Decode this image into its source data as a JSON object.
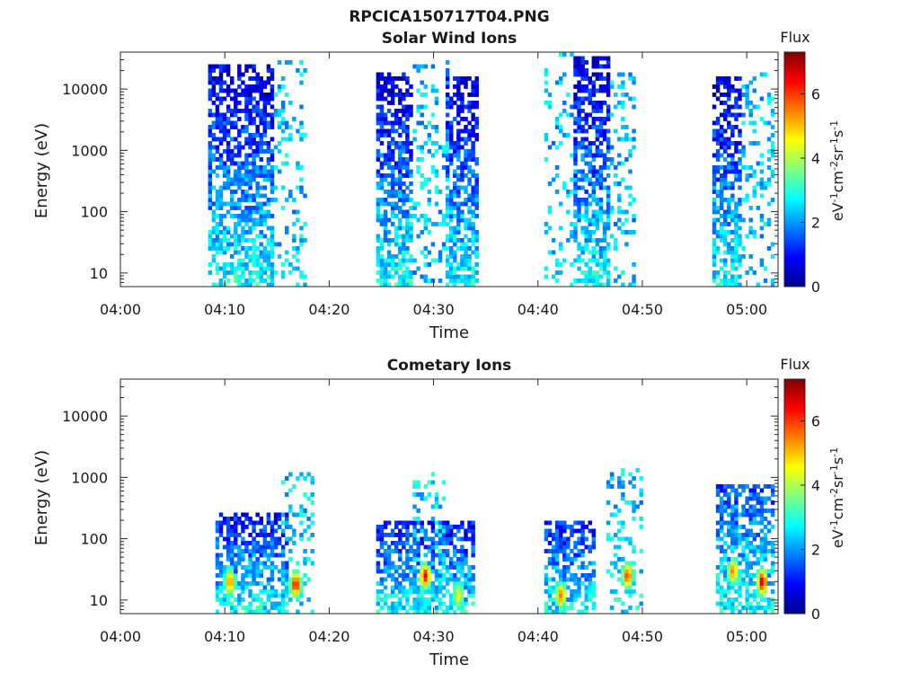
{
  "figure_title": "RPCICA150717T04.PNG",
  "chart_data": [
    {
      "type": "heatmap",
      "title": "Solar Wind Ions",
      "xlabel": "Time",
      "ylabel": "Energy (eV)",
      "x_ticks": [
        "04:00",
        "04:10",
        "04:20",
        "04:30",
        "04:40",
        "04:50",
        "05:00"
      ],
      "xlim_minutes": [
        0,
        63
      ],
      "y_ticks": [
        {
          "value": 10,
          "label": "10"
        },
        {
          "value": 100,
          "label": "100"
        },
        {
          "value": 1000,
          "label": "1000"
        },
        {
          "value": 10000,
          "label": "10000"
        }
      ],
      "ylim": [
        6,
        40000
      ],
      "y_scale": "log",
      "colorbar": {
        "title": "Flux",
        "label": "eV-1cm-2sr-1s-1",
        "ticks": [
          "0",
          "2",
          "4",
          "6"
        ],
        "range": [
          0,
          7.3
        ]
      },
      "regions": [
        {
          "start_min": 8.5,
          "end_min": 14.8,
          "flux_low_energy": 2.8,
          "flux_high_energy": 0.6,
          "e_top": 25000
        },
        {
          "start_min": 14.8,
          "end_min": 18.0,
          "flux_low_energy": 2.3,
          "flux_high_energy": 2.3,
          "e_top": 30000,
          "sparse": true
        },
        {
          "start_min": 24.5,
          "end_min": 28.0,
          "flux_low_energy": 2.8,
          "flux_high_energy": 0.6,
          "e_top": 20000
        },
        {
          "start_min": 28.0,
          "end_min": 31.5,
          "flux_low_energy": 2.3,
          "flux_high_energy": 2.3,
          "e_top": 30000,
          "sparse": true
        },
        {
          "start_min": 31.0,
          "end_min": 34.2,
          "flux_low_energy": 2.8,
          "flux_high_energy": 0.6,
          "e_top": 16000
        },
        {
          "start_min": 40.5,
          "end_min": 43.5,
          "flux_low_energy": 2.3,
          "flux_high_energy": 2.3,
          "e_top": 40000,
          "sparse": true
        },
        {
          "start_min": 43.5,
          "end_min": 46.8,
          "flux_low_energy": 2.8,
          "flux_high_energy": 0.6,
          "e_top": 35000
        },
        {
          "start_min": 46.8,
          "end_min": 49.5,
          "flux_low_energy": 2.3,
          "flux_high_energy": 2.3,
          "e_top": 20000,
          "sparse": true
        },
        {
          "start_min": 56.8,
          "end_min": 59.6,
          "flux_low_energy": 2.8,
          "flux_high_energy": 0.6,
          "e_top": 15000
        },
        {
          "start_min": 59.6,
          "end_min": 62.8,
          "flux_low_energy": 2.3,
          "flux_high_energy": 2.3,
          "e_top": 20000,
          "sparse": true
        }
      ],
      "hot_spots": []
    },
    {
      "type": "heatmap",
      "title": "Cometary Ions",
      "xlabel": "Time",
      "ylabel": "Energy (eV)",
      "x_ticks": [
        "04:00",
        "04:10",
        "04:20",
        "04:30",
        "04:40",
        "04:50",
        "05:00"
      ],
      "xlim_minutes": [
        0,
        63
      ],
      "y_ticks": [
        {
          "value": 10,
          "label": "10"
        },
        {
          "value": 100,
          "label": "100"
        },
        {
          "value": 1000,
          "label": "1000"
        },
        {
          "value": 10000,
          "label": "10000"
        }
      ],
      "ylim": [
        6,
        40000
      ],
      "y_scale": "log",
      "colorbar": {
        "title": "Flux",
        "label": "eV-1cm-2sr-1s-1",
        "ticks": [
          "0",
          "2",
          "4",
          "6"
        ],
        "range": [
          0,
          7.3
        ]
      },
      "regions": [
        {
          "start_min": 9.0,
          "end_min": 16.0,
          "flux_low_energy": 2.8,
          "flux_high_energy": 1.0,
          "e_top": 250
        },
        {
          "start_min": 15.5,
          "end_min": 18.5,
          "flux_low_energy": 2.6,
          "flux_high_energy": 2.4,
          "e_top": 1200,
          "sparse": true
        },
        {
          "start_min": 24.5,
          "end_min": 34.0,
          "flux_low_energy": 2.8,
          "flux_high_energy": 1.0,
          "e_top": 200
        },
        {
          "start_min": 28.0,
          "end_min": 31.0,
          "flux_low_energy": 2.5,
          "flux_high_energy": 2.5,
          "e_top": 1200,
          "sparse": true
        },
        {
          "start_min": 40.5,
          "end_min": 45.5,
          "flux_low_energy": 2.8,
          "flux_high_energy": 1.0,
          "e_top": 200
        },
        {
          "start_min": 46.5,
          "end_min": 50.0,
          "flux_low_energy": 2.6,
          "flux_high_energy": 2.3,
          "e_top": 1500,
          "sparse": true
        },
        {
          "start_min": 57.0,
          "end_min": 62.8,
          "flux_low_energy": 2.8,
          "flux_high_energy": 1.5,
          "e_top": 800
        }
      ],
      "hot_spots": [
        {
          "min": 10.5,
          "e": 20,
          "flux": 5.5
        },
        {
          "min": 16.8,
          "e": 18,
          "flux": 6.5
        },
        {
          "min": 29.2,
          "e": 25,
          "flux": 6.5
        },
        {
          "min": 32.4,
          "e": 12,
          "flux": 4.5
        },
        {
          "min": 42.2,
          "e": 12,
          "flux": 5.5
        },
        {
          "min": 48.6,
          "e": 25,
          "flux": 6.0
        },
        {
          "min": 58.7,
          "e": 30,
          "flux": 5.5
        },
        {
          "min": 61.5,
          "e": 20,
          "flux": 6.8
        }
      ]
    }
  ]
}
